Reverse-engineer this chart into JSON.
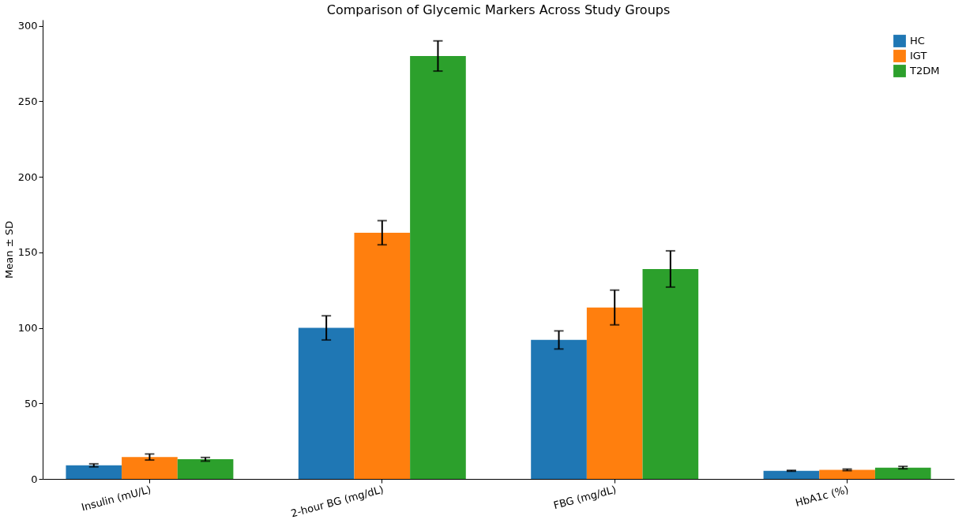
{
  "chart_data": {
    "type": "bar",
    "title": "Comparison of Glycemic Markers Across Study Groups",
    "ylabel": "Mean ± SD",
    "categories": [
      "Insulin (mU/L)",
      "2-hour BG (mg/dL)",
      "FBG (mg/dL)",
      "HbA1c (%)"
    ],
    "series": [
      {
        "name": "HC",
        "color": "#1f77b4",
        "values": [
          9,
          100,
          92,
          5.4
        ],
        "errors": [
          1,
          8,
          6,
          0.3
        ]
      },
      {
        "name": "IGT",
        "color": "#ff7f0e",
        "values": [
          14.5,
          163,
          113.5,
          6.0
        ],
        "errors": [
          2,
          8,
          11.5,
          0.5
        ]
      },
      {
        "name": "T2DM",
        "color": "#2ca02c",
        "values": [
          13,
          280,
          139,
          7.5
        ],
        "errors": [
          1.2,
          10,
          12,
          0.8
        ]
      }
    ],
    "ylim": [
      0,
      304
    ],
    "yticks": [
      0,
      50,
      100,
      150,
      200,
      250,
      300
    ],
    "grid": false,
    "legend": "top right"
  }
}
